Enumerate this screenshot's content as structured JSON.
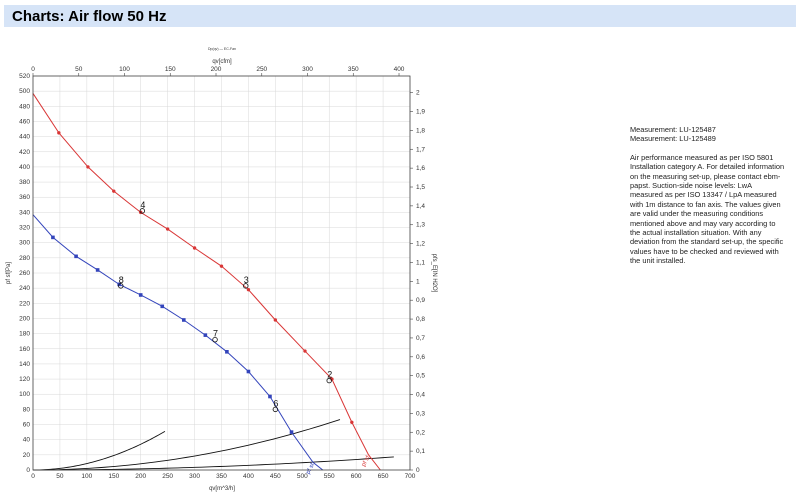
{
  "header": {
    "title": "Charts: Air flow 50 Hz"
  },
  "info": {
    "measurements": [
      "Measurement: LU-125487",
      "Measurement: LU-125489"
    ],
    "description": "Air performance measured as per ISO 5801 Installation category A. For detailed information on the measuring set-up, please contact ebm-papst. Suction-side noise levels: LwA measured as per ISO 13347 / LpA measured with 1m distance to fan axis. The values given are valid under the measuring conditions mentioned above and may vary according to the actual installation situation. With any deviation from the standard set-up, the specific values have to be checked and reviewed with the unit installed."
  },
  "chart_data": {
    "type": "line",
    "title": "Dp(qv) — EC-Fan",
    "xlabel_bottom": "qv[m^3/h]",
    "xlabel_top": "qv[cfm]",
    "ylabel_left": "pf sf[Pa]",
    "ylabel_right": "pfs_E[IN H2O]",
    "xlim": [
      0,
      700
    ],
    "ylim": [
      0,
      520
    ],
    "x_ticks": [
      "0",
      "50",
      "100",
      "150",
      "200",
      "250",
      "300",
      "350",
      "400",
      "450",
      "500",
      "550",
      "600",
      "650",
      "700"
    ],
    "y_ticks": [
      "0",
      "20",
      "40",
      "60",
      "80",
      "100",
      "120",
      "140",
      "160",
      "180",
      "200",
      "220",
      "240",
      "260",
      "280",
      "300",
      "320",
      "340",
      "360",
      "380",
      "400",
      "420",
      "440",
      "460",
      "480",
      "500",
      "520"
    ],
    "top_ticks": [
      "0",
      "50",
      "100",
      "150",
      "200",
      "250",
      "300",
      "350",
      "400"
    ],
    "right_ticks": [
      "0",
      "0,1",
      "0,2",
      "0,3",
      "0,4",
      "0,5",
      "0,6",
      "0,7",
      "0,8",
      "0,9",
      "1",
      "1,1",
      "1,2",
      "1,3",
      "1,4",
      "1,5",
      "1,6",
      "1,7",
      "1,8",
      "1,9",
      "2"
    ],
    "grid": true,
    "series": [
      {
        "name": "pf sf",
        "color": "#d93636",
        "points": [
          [
            0,
            497
          ],
          [
            48,
            445
          ],
          [
            102,
            400
          ],
          [
            150,
            368
          ],
          [
            200,
            340
          ],
          [
            250,
            318
          ],
          [
            300,
            293
          ],
          [
            350,
            269
          ],
          [
            400,
            238
          ],
          [
            450,
            198
          ],
          [
            505,
            157
          ],
          [
            555,
            120
          ],
          [
            592,
            63
          ],
          [
            623,
            20
          ],
          [
            645,
            0
          ]
        ]
      },
      {
        "name": "pf sf",
        "color": "#3344bb",
        "points": [
          [
            0,
            337
          ],
          [
            37,
            307
          ],
          [
            80,
            282
          ],
          [
            120,
            264
          ],
          [
            160,
            245
          ],
          [
            200,
            231
          ],
          [
            240,
            216
          ],
          [
            280,
            198
          ],
          [
            320,
            178
          ],
          [
            360,
            156
          ],
          [
            400,
            130
          ],
          [
            440,
            97
          ],
          [
            480,
            50
          ],
          [
            520,
            10
          ],
          [
            538,
            0
          ]
        ]
      }
    ],
    "system_curves": [
      {
        "k": 0.00085,
        "x_max": 245
      },
      {
        "k": 0.000205,
        "x_max": 570
      },
      {
        "k": 3.85e-05,
        "x_max": 670
      }
    ],
    "operating_points": [
      {
        "label": "2",
        "x": 550,
        "y": 118
      },
      {
        "label": "3",
        "x": 395,
        "y": 243
      },
      {
        "label": "4",
        "x": 203,
        "y": 342
      },
      {
        "label": "6",
        "x": 450,
        "y": 80
      },
      {
        "label": "7",
        "x": 338,
        "y": 172
      },
      {
        "label": "8",
        "x": 163,
        "y": 243
      }
    ]
  }
}
